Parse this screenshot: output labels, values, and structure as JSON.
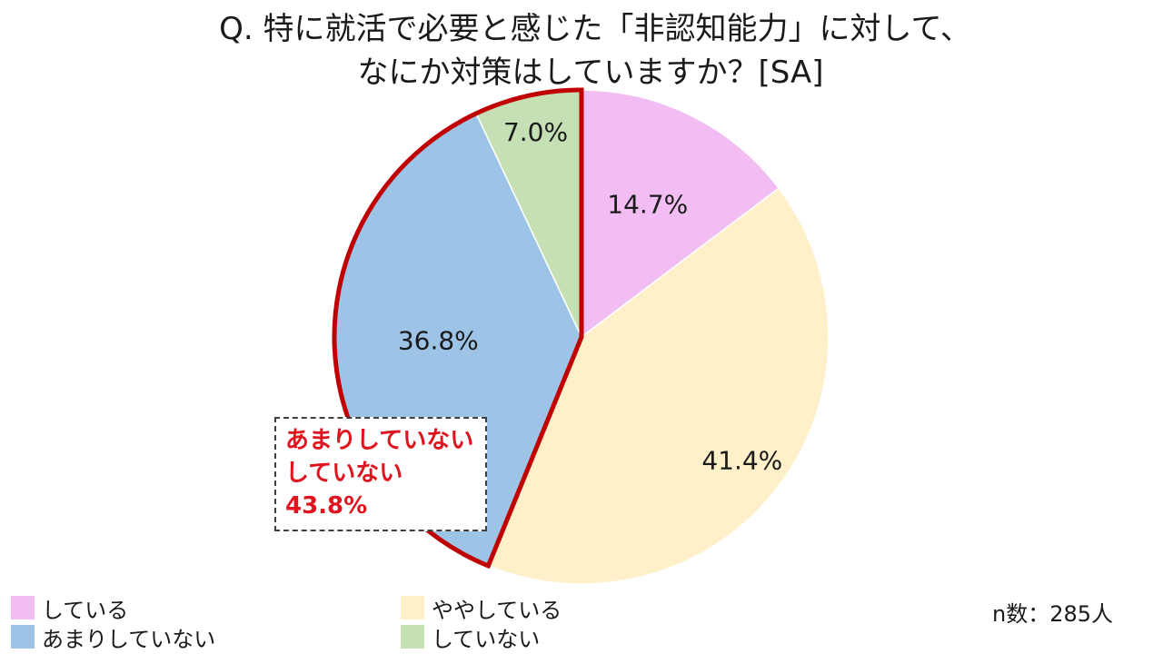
{
  "title": {
    "line1": "Q. 特に就活で必要と感じた「非認知能力」に対して、",
    "line2": "なにか対策はしていますか？[SA]"
  },
  "chart_data": {
    "type": "pie",
    "categories": [
      "している",
      "ややしている",
      "あまりしていない",
      "していない"
    ],
    "values": [
      14.7,
      41.4,
      36.8,
      7.0
    ],
    "labels": [
      "14.7%",
      "41.4%",
      "36.8%",
      "7.0%"
    ],
    "colors": [
      "#f2bdf2",
      "#fff0c9",
      "#9dc3e6",
      "#c5e0b4"
    ],
    "highlight_color": "#c00000",
    "legend_position": "bottom"
  },
  "callout": {
    "line1": "あまりしていない",
    "line2": "していない",
    "line3": "43.8%",
    "color": "#e0141e"
  },
  "n_label": "n数：285人"
}
